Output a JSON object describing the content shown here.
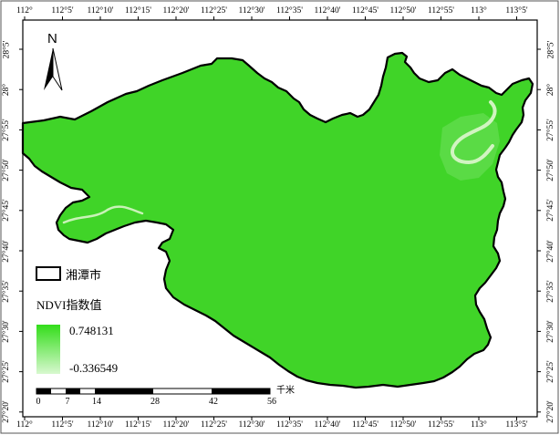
{
  "map": {
    "graticule": {
      "longitude_labels": [
        "112°",
        "112°5'",
        "112°10'",
        "112°15'",
        "112°20'",
        "112°25'",
        "112°30'",
        "112°35'",
        "112°40'",
        "112°45'",
        "112°50'",
        "112°55'",
        "113°",
        "113°5'"
      ],
      "latitude_labels": [
        "28°5'",
        "28°",
        "27°55'",
        "27°50'",
        "27°45'",
        "27°40'",
        "27°35'",
        "27°30'",
        "27°25'",
        "27°20'"
      ]
    },
    "north_arrow": {
      "label": "N",
      "icon": "north-arrow-icon"
    },
    "legend": {
      "boundary_label": "湘潭市",
      "ndvi_title": "NDVI指数值",
      "ndvi_max": "0.748131",
      "ndvi_min": "-0.336549",
      "ndvi_colors": {
        "high": "#33dd1a",
        "low": "#d8f8cf"
      }
    },
    "scale_bar": {
      "ticks": [
        "0",
        "7",
        "14",
        "28",
        "42",
        "56"
      ],
      "unit": "千米"
    },
    "colors": {
      "region_fill": "#40d428",
      "boundary": "#000000",
      "river": "#d8f5c8",
      "frame": "#000000"
    }
  }
}
